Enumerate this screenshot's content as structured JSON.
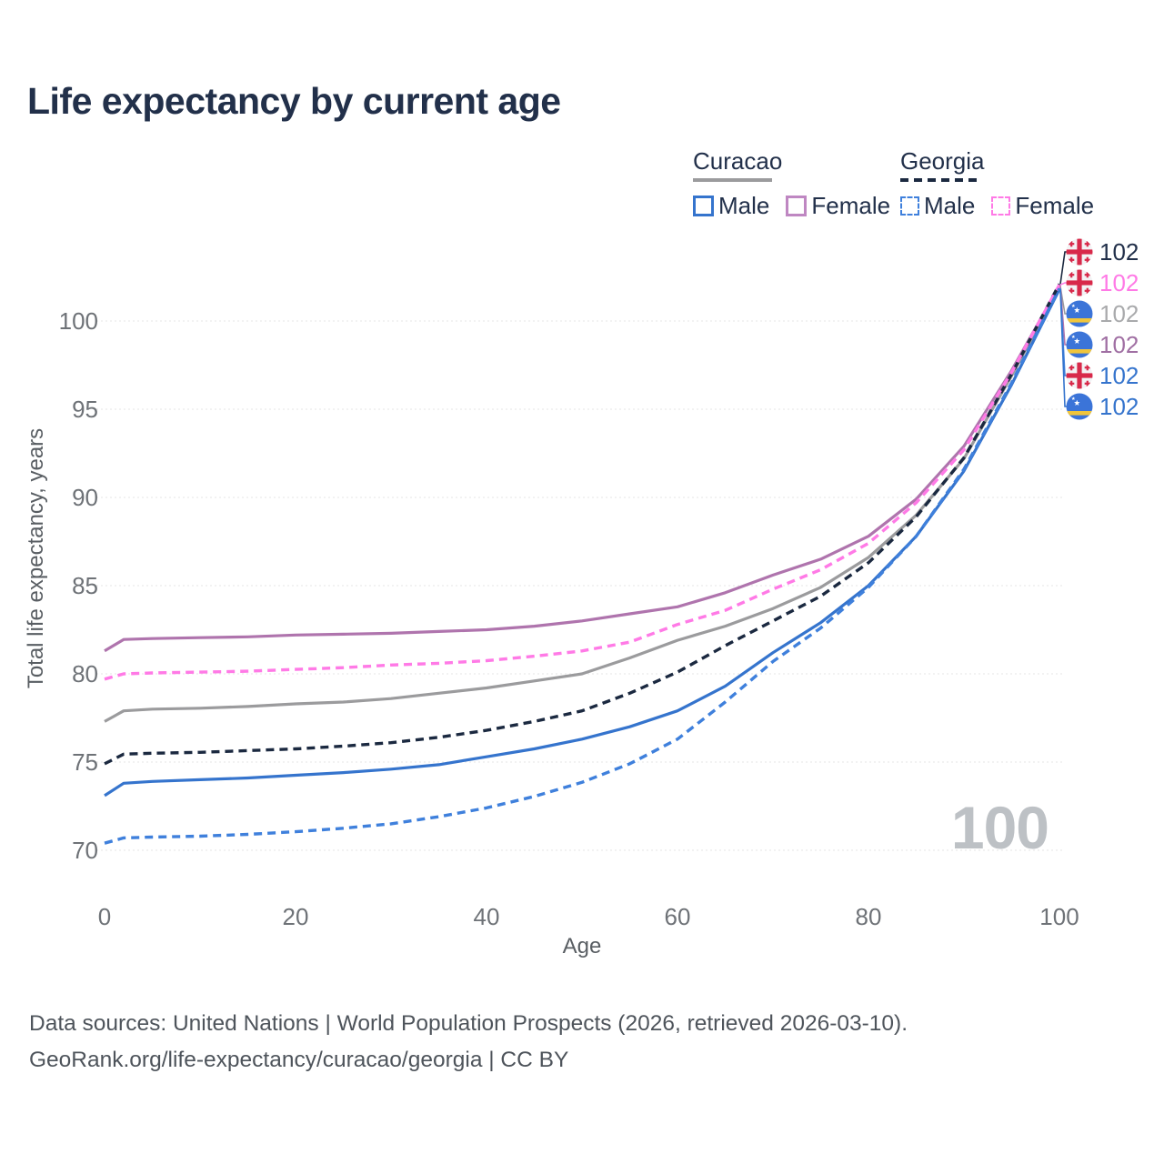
{
  "title": "Life expectancy by current age",
  "legend": {
    "groups": [
      {
        "label": "Curacao",
        "line_style": "solid",
        "underline_color": "#9b9b9d",
        "items": [
          {
            "label": "Male",
            "color": "#3574cd",
            "dash": false
          },
          {
            "label": "Female",
            "color": "#bf87c2",
            "dash": false
          }
        ]
      },
      {
        "label": "Georgia",
        "line_style": "dashed",
        "underline_color": "#1b2940",
        "items": [
          {
            "label": "Male",
            "color": "#3f80dc",
            "dash": true
          },
          {
            "label": "Female",
            "color": "#ff7ae6",
            "dash": true
          }
        ]
      }
    ]
  },
  "chart_data": {
    "type": "line",
    "title": "Life expectancy by current age",
    "xlabel": "Age",
    "ylabel": "Total life expectancy, years",
    "xlim": [
      0,
      100
    ],
    "ylim": [
      68.5,
      104
    ],
    "xticks": [
      0,
      20,
      40,
      60,
      80,
      100
    ],
    "yticks": [
      70,
      75,
      80,
      85,
      90,
      95,
      100
    ],
    "grid": true,
    "legend_position": "top-right",
    "x": [
      0,
      2,
      5,
      10,
      15,
      20,
      25,
      30,
      35,
      40,
      45,
      50,
      55,
      60,
      65,
      70,
      75,
      80,
      85,
      90,
      95,
      100
    ],
    "series": [
      {
        "name": "Curacao Female",
        "country": "Curacao",
        "sex": "female",
        "color": "#af74ad",
        "dash": false,
        "values": [
          81.3,
          81.95,
          82.0,
          82.05,
          82.1,
          82.2,
          82.25,
          82.3,
          82.4,
          82.5,
          82.7,
          83.0,
          83.4,
          83.8,
          84.6,
          85.6,
          86.5,
          87.8,
          89.9,
          92.9,
          97.2,
          102.0
        ],
        "end_label": "102",
        "label_row": 3
      },
      {
        "name": "Curacao Total",
        "country": "Curacao",
        "sex": "both",
        "color": "#9b9b9d",
        "dash": false,
        "values": [
          77.3,
          77.9,
          78.0,
          78.05,
          78.15,
          78.3,
          78.4,
          78.6,
          78.9,
          79.2,
          79.6,
          80.0,
          80.9,
          81.9,
          82.7,
          83.7,
          84.9,
          86.6,
          89.0,
          92.2,
          96.9,
          101.95
        ],
        "end_label": "102",
        "label_row": 2
      },
      {
        "name": "Curacao Male",
        "country": "Curacao",
        "sex": "male",
        "color": "#3574cd",
        "dash": false,
        "values": [
          73.1,
          73.8,
          73.9,
          74.0,
          74.1,
          74.25,
          74.4,
          74.6,
          74.85,
          75.3,
          75.75,
          76.3,
          77.0,
          77.9,
          79.3,
          81.2,
          82.9,
          85.0,
          87.8,
          91.5,
          96.4,
          101.8
        ],
        "end_label": "102",
        "label_row": 5
      },
      {
        "name": "Georgia Total",
        "country": "Georgia",
        "sex": "both",
        "color": "#1b2940",
        "dash": true,
        "values": [
          74.9,
          75.45,
          75.5,
          75.55,
          75.65,
          75.75,
          75.9,
          76.1,
          76.4,
          76.8,
          77.3,
          77.9,
          78.9,
          80.1,
          81.6,
          83.0,
          84.4,
          86.3,
          88.9,
          92.25,
          97.0,
          102.1
        ],
        "end_label": "102",
        "label_row": 0
      },
      {
        "name": "Georgia Female",
        "country": "Georgia",
        "sex": "female",
        "color": "#ff7ae6",
        "dash": true,
        "values": [
          79.7,
          80.0,
          80.05,
          80.1,
          80.15,
          80.25,
          80.35,
          80.5,
          80.6,
          80.75,
          81.0,
          81.3,
          81.8,
          82.8,
          83.6,
          84.8,
          85.9,
          87.4,
          89.7,
          92.7,
          97.1,
          102.05
        ],
        "end_label": "102",
        "label_row": 1
      },
      {
        "name": "Georgia Male",
        "country": "Georgia",
        "sex": "male",
        "color": "#3f80dc",
        "dash": true,
        "values": [
          70.4,
          70.7,
          70.75,
          70.8,
          70.9,
          71.05,
          71.25,
          71.5,
          71.9,
          72.4,
          73.05,
          73.85,
          74.9,
          76.3,
          78.4,
          80.7,
          82.6,
          84.9,
          87.8,
          91.6,
          96.5,
          101.85
        ],
        "end_label": "102",
        "label_row": 4
      }
    ]
  },
  "end_labels": [
    {
      "flag": "georgia",
      "value": "102",
      "color": "#22304a"
    },
    {
      "flag": "georgia",
      "value": "102",
      "color": "#ff7ae6"
    },
    {
      "flag": "curacao",
      "value": "102",
      "color": "#a9aaac"
    },
    {
      "flag": "curacao",
      "value": "102",
      "color": "#a06fa3"
    },
    {
      "flag": "georgia",
      "value": "102",
      "color": "#3574cd"
    },
    {
      "flag": "curacao",
      "value": "102",
      "color": "#3574cd"
    }
  ],
  "watermark": "100",
  "axes": {
    "y_title": "Total life expectancy, years",
    "x_title": "Age"
  },
  "footer": {
    "line1": "Data sources: United Nations | World Population Prospects (2026, retrieved 2026-03-10).",
    "line2": "GeoRank.org/life-expectancy/curacao/georgia | CC BY"
  },
  "colors": {
    "grid": "#e9e9eb",
    "tick_text": "#6e7277",
    "title_text": "#22304a",
    "watermark": "#bdc1c5",
    "footer_text": "#4e545b",
    "georgia_flag_red": "#d8294a",
    "curacao_flag_blue": "#3b74d8",
    "curacao_flag_yellow": "#f0c53c"
  }
}
